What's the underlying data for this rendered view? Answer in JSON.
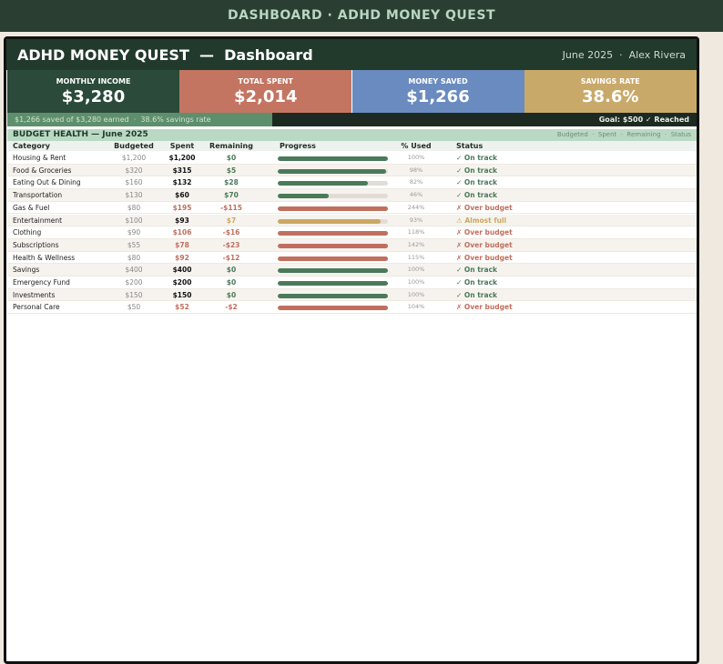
{
  "topbar": {
    "title": "DASHBOARD · ADHD MONEY QUEST"
  },
  "header": {
    "title": "ADHD MONEY QUEST  —  Dashboard",
    "meta": "June 2025  ·  Alex Rivera"
  },
  "kpis": [
    {
      "label": "MONTHLY INCOME",
      "value": "$3,280",
      "color": "#2b4a39"
    },
    {
      "label": "TOTAL SPENT",
      "value": "$2,014",
      "color": "#c37562"
    },
    {
      "label": "MONEY SAVED",
      "value": "$1,266",
      "color": "#6a8bbf"
    },
    {
      "label": "SAVINGS RATE",
      "value": "38.6%",
      "color": "#c9a96a"
    }
  ],
  "strip": {
    "summary": "$1,266 saved of $3,280 earned  ·  38.6% savings rate",
    "goal": "Goal: $500 ✓ Reached"
  },
  "section": {
    "title": "BUDGET HEALTH — June 2025",
    "legend": "Budgeted  ·  Spent  ·  Remaining  ·  Status"
  },
  "table": {
    "columns": [
      "Category",
      "Budgeted",
      "Spent",
      "Remaining",
      "Progress",
      "% Used",
      "Status"
    ],
    "rows": [
      {
        "category": "Housing & Rent",
        "budgeted": "$1,200",
        "spent": "$1,200",
        "remaining": "$0",
        "pct": 100,
        "pct_label": "100%",
        "status": "✓ On track",
        "color": "#4a7a5a"
      },
      {
        "category": "Food & Groceries",
        "budgeted": "$320",
        "spent": "$315",
        "remaining": "$5",
        "pct": 98,
        "pct_label": "98%",
        "status": "✓ On track",
        "color": "#4a7a5a"
      },
      {
        "category": "Eating Out & Dining",
        "budgeted": "$160",
        "spent": "$132",
        "remaining": "$28",
        "pct": 82,
        "pct_label": "82%",
        "status": "✓ On track",
        "color": "#4a7a5a"
      },
      {
        "category": "Transportation",
        "budgeted": "$130",
        "spent": "$60",
        "remaining": "$70",
        "pct": 46,
        "pct_label": "46%",
        "status": "✓ On track",
        "color": "#4a7a5a"
      },
      {
        "category": "Gas & Fuel",
        "budgeted": "$80",
        "spent": "$195",
        "remaining": "-$115",
        "pct": 244,
        "pct_label": "244%",
        "status": "✗ Over budget",
        "color": "#c06f5e"
      },
      {
        "category": "Entertainment",
        "budgeted": "$100",
        "spent": "$93",
        "remaining": "$7",
        "pct": 93,
        "pct_label": "93%",
        "status": "⚠ Almost full",
        "color": "#c9a862"
      },
      {
        "category": "Clothing",
        "budgeted": "$90",
        "spent": "$106",
        "remaining": "-$16",
        "pct": 118,
        "pct_label": "118%",
        "status": "✗ Over budget",
        "color": "#c06f5e"
      },
      {
        "category": "Subscriptions",
        "budgeted": "$55",
        "spent": "$78",
        "remaining": "-$23",
        "pct": 142,
        "pct_label": "142%",
        "status": "✗ Over budget",
        "color": "#c06f5e"
      },
      {
        "category": "Health & Wellness",
        "budgeted": "$80",
        "spent": "$92",
        "remaining": "-$12",
        "pct": 115,
        "pct_label": "115%",
        "status": "✗ Over budget",
        "color": "#c06f5e"
      },
      {
        "category": "Savings",
        "budgeted": "$400",
        "spent": "$400",
        "remaining": "$0",
        "pct": 100,
        "pct_label": "100%",
        "status": "✓ On track",
        "color": "#4a7a5a"
      },
      {
        "category": "Emergency Fund",
        "budgeted": "$200",
        "spent": "$200",
        "remaining": "$0",
        "pct": 100,
        "pct_label": "100%",
        "status": "✓ On track",
        "color": "#4a7a5a"
      },
      {
        "category": "Investments",
        "budgeted": "$150",
        "spent": "$150",
        "remaining": "$0",
        "pct": 100,
        "pct_label": "100%",
        "status": "✓ On track",
        "color": "#4a7a5a"
      },
      {
        "category": "Personal Care",
        "budgeted": "$50",
        "spent": "$52",
        "remaining": "-$2",
        "pct": 104,
        "pct_label": "104%",
        "status": "✗ Over budget",
        "color": "#c06f5e"
      }
    ]
  }
}
